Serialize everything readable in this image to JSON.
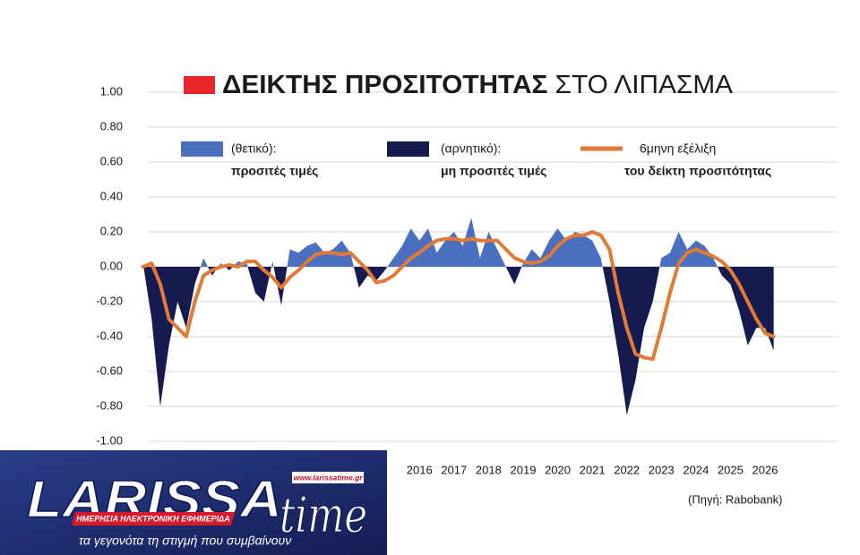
{
  "chart_data": {
    "type": "area",
    "title_bold": "ΔΕΙΚΤΗΣ ΠΡΟΣΙΤΟΤΗΤΑΣ",
    "title_rest": "ΣΤΟ ΛΙΠΑΣΜΑ",
    "title_marker_color": "#e8262a",
    "source": "(Πηγή: Rabobank)",
    "legend": [
      {
        "text": "(θετικό):",
        "bold": "προσιτές τιμές",
        "mark": "positive"
      },
      {
        "text": "(αρνητικό):",
        "bold": "μη προσιτές τιμές",
        "mark": "negative"
      },
      {
        "text": "6μηνη εξέλιξη",
        "bold": "του δείκτη προσιτότητας",
        "mark": "line"
      }
    ],
    "x": [
      2008,
      2008.25,
      2008.5,
      2008.75,
      2009,
      2009.25,
      2009.5,
      2009.75,
      2010,
      2010.25,
      2010.5,
      2010.75,
      2011,
      2011.25,
      2011.5,
      2011.75,
      2012,
      2012.25,
      2012.5,
      2012.75,
      2013,
      2013.25,
      2013.5,
      2013.75,
      2014,
      2014.25,
      2014.5,
      2014.75,
      2015,
      2015.25,
      2015.5,
      2015.75,
      2016,
      2016.25,
      2016.5,
      2016.75,
      2017,
      2017.25,
      2017.5,
      2017.75,
      2018,
      2018.25,
      2018.5,
      2018.75,
      2019,
      2019.25,
      2019.5,
      2019.75,
      2020,
      2020.25,
      2020.5,
      2020.75,
      2021,
      2021.25,
      2021.5,
      2021.75,
      2022,
      2022.25,
      2022.5,
      2022.75,
      2023,
      2023.25,
      2023.5,
      2023.75,
      2024,
      2024.25,
      2024.5,
      2024.75,
      2025,
      2025.25,
      2025.5,
      2025.75,
      2026,
      2026.25
    ],
    "series": [
      {
        "type": "area",
        "positive_color": "#4a6fbf",
        "negative_color": "#151a4f",
        "values": [
          0.02,
          -0.3,
          -0.8,
          -0.45,
          -0.2,
          -0.35,
          -0.1,
          0.05,
          -0.05,
          0.02,
          -0.02,
          0.03,
          0.02,
          -0.15,
          -0.2,
          0.03,
          -0.22,
          0.1,
          0.08,
          0.12,
          0.14,
          0.08,
          0.1,
          0.15,
          0.08,
          -0.12,
          -0.05,
          -0.08,
          -0.02,
          0.05,
          0.12,
          0.22,
          0.15,
          0.22,
          0.08,
          0.15,
          0.2,
          0.12,
          0.28,
          0.05,
          0.2,
          0.1,
          0.0,
          -0.1,
          0.02,
          0.1,
          0.05,
          0.15,
          0.22,
          0.15,
          0.2,
          0.18,
          0.15,
          0.05,
          -0.2,
          -0.5,
          -0.85,
          -0.65,
          -0.35,
          -0.2,
          0.05,
          0.08,
          0.2,
          0.1,
          0.15,
          0.12,
          0.05,
          -0.05,
          -0.1,
          -0.25,
          -0.45,
          -0.35,
          -0.35,
          -0.48
        ]
      },
      {
        "type": "line",
        "color": "#e07a34",
        "values": [
          0.0,
          0.02,
          -0.1,
          -0.3,
          -0.35,
          -0.4,
          -0.2,
          -0.05,
          -0.02,
          0.0,
          0.01,
          0.0,
          0.03,
          0.03,
          -0.02,
          -0.06,
          -0.12,
          -0.06,
          -0.02,
          0.03,
          0.07,
          0.08,
          0.08,
          0.07,
          0.08,
          0.03,
          -0.02,
          -0.09,
          -0.08,
          -0.05,
          0.0,
          0.05,
          0.08,
          0.12,
          0.15,
          0.16,
          0.16,
          0.15,
          0.16,
          0.15,
          0.15,
          0.15,
          0.1,
          0.05,
          0.03,
          0.02,
          0.03,
          0.06,
          0.12,
          0.16,
          0.18,
          0.18,
          0.2,
          0.18,
          0.1,
          -0.15,
          -0.35,
          -0.5,
          -0.52,
          -0.53,
          -0.35,
          -0.15,
          0.02,
          0.08,
          0.1,
          0.08,
          0.06,
          0.03,
          -0.02,
          -0.1,
          -0.2,
          -0.3,
          -0.38,
          -0.4
        ]
      }
    ],
    "xlim": [
      2007.75,
      2028.1
    ],
    "xticks": [
      2016,
      2017,
      2018,
      2019,
      2020,
      2021,
      2022,
      2023,
      2024,
      2025,
      2026
    ],
    "ylim": [
      -1,
      1
    ],
    "yticks": [
      {
        "value": 1,
        "label": "1.00"
      },
      {
        "value": 0.8,
        "label": "0.80"
      },
      {
        "value": 0.6,
        "label": "0.60"
      },
      {
        "value": 0.4,
        "label": "0.40"
      },
      {
        "value": 0.2,
        "label": "0.20"
      },
      {
        "value": 0,
        "label": "0.00"
      },
      {
        "value": -0.2,
        "label": "-0.20"
      },
      {
        "value": -0.4,
        "label": "-0.40"
      },
      {
        "value": -0.6,
        "label": "-0.60"
      },
      {
        "value": -0.8,
        "label": "-0.80"
      },
      {
        "value": -1,
        "label": "-1.00"
      }
    ],
    "grid": true
  },
  "logo": {
    "name": "LARISSA",
    "name2": "time",
    "url": "www.larissatime.gr",
    "banner": "ΗΜΕΡΗΣΙΑ ΗΛΕΚΤΡΟΝΙΚΗ ΕΦΗΜΕΡΙΔΑ",
    "tagline": "τα γεγονότα τη στιγμή που συμβαίνουν"
  }
}
